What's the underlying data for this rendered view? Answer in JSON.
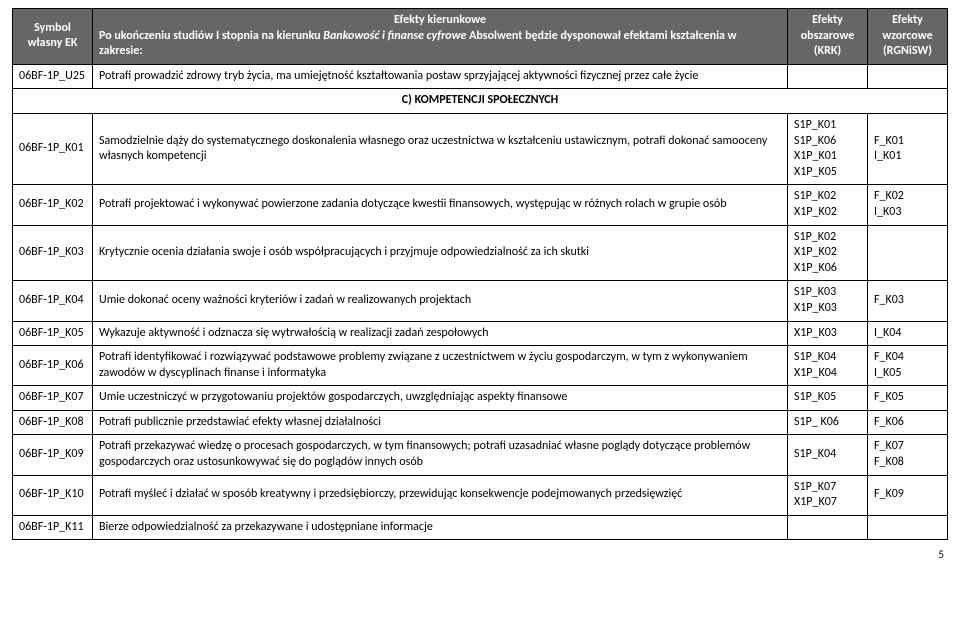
{
  "headers": {
    "symbol": "Symbol\nwłasny EK",
    "kierunkowe_title": "Efekty kierunkowe",
    "kierunkowe_sub": "Po ukończeniu studiów I stopnia na kierunku Bankowość i finanse cyfrowe Absolwent będzie dysponował efektami kształcenia w zakresie:",
    "krk": "Efekty obszarowe (KRK)",
    "rgn": "Efekty wzorcowe (RGNiSW)"
  },
  "section_c": "C) KOMPETENCJI SPOŁECZNYCH",
  "rows": [
    {
      "symbol": "06BF-1P_U25",
      "desc": "Potrafi prowadzić zdrowy tryb życia, ma umiejętność kształtowania postaw sprzyjającej aktywności fizycznej przez całe życie",
      "krk": "",
      "rgn": ""
    },
    {
      "symbol": "06BF-1P_K01",
      "desc": "Samodzielnie dąży do systematycznego doskonalenia własnego oraz uczestnictwa w kształceniu ustawicznym, potrafi dokonać samooceny własnych kompetencji",
      "krk": "S1P_K01\nS1P_K06\nX1P_K01\nX1P_K05",
      "rgn": "F_K01\nI_K01"
    },
    {
      "symbol": "06BF-1P_K02",
      "desc": "Potrafi projektować i wykonywać powierzone zadania dotyczące kwestii finansowych, występując w różnych rolach w grupie osób",
      "krk": "S1P_K02\nX1P_K02",
      "rgn": "F_K02\nI_K03"
    },
    {
      "symbol": "06BF-1P_K03",
      "desc": "Krytycznie ocenia działania swoje i osób współpracujących i przyjmuje odpowiedzialność za ich skutki",
      "krk": "S1P_K02\nX1P_K02\nX1P_K06",
      "rgn": ""
    },
    {
      "symbol": "06BF-1P_K04",
      "desc": "Umie dokonać oceny ważności kryteriów i zadań w realizowanych projektach",
      "krk": "S1P_K03\nX1P_K03",
      "rgn": "F_K03"
    },
    {
      "symbol": "06BF-1P_K05",
      "desc": "Wykazuje aktywność i odznacza się wytrwałością w realizacji zadań zespołowych",
      "krk": "X1P_K03",
      "rgn": "I_K04"
    },
    {
      "symbol": "06BF-1P_K06",
      "desc": "Potrafi identyfikować i rozwiązywać podstawowe problemy związane z uczestnictwem w życiu gospodarczym, w tym z wykonywaniem zawodów w dyscyplinach finanse i informatyka",
      "krk": "S1P_K04\nX1P_K04",
      "rgn": "F_K04\nI_K05"
    },
    {
      "symbol": "06BF-1P_K07",
      "desc": "Umie uczestniczyć w przygotowaniu projektów gospodarczych, uwzględniając aspekty finansowe",
      "krk": "S1P_K05",
      "rgn": "F_K05"
    },
    {
      "symbol": "06BF-1P_K08",
      "desc": "Potrafi publicznie przedstawiać efekty własnej działalności",
      "krk": "S1P_ K06",
      "rgn": "F_K06"
    },
    {
      "symbol": "06BF-1P_K09",
      "desc": "Potrafi przekazywać wiedzę o procesach gospodarczych, w tym finansowych; potrafi uzasadniać własne poglądy dotyczące problemów gospodarczych oraz ustosunkowywać się do poglądów innych osób",
      "krk": "S1P_K04",
      "rgn": "F_K07\nF_K08"
    },
    {
      "symbol": "06BF-1P_K10",
      "desc": "Potrafi myśleć i działać w sposób kreatywny i przedsiębiorczy, przewidując konsekwencje podejmowanych przedsięwzięć",
      "krk": "S1P_K07\nX1P_K07",
      "rgn": "F_K09"
    },
    {
      "symbol": "06BF-1P_K11",
      "desc": "Bierze odpowiedzialność za przekazywane i udostępniane informacje",
      "krk": "",
      "rgn": ""
    }
  ],
  "page_number": "5"
}
